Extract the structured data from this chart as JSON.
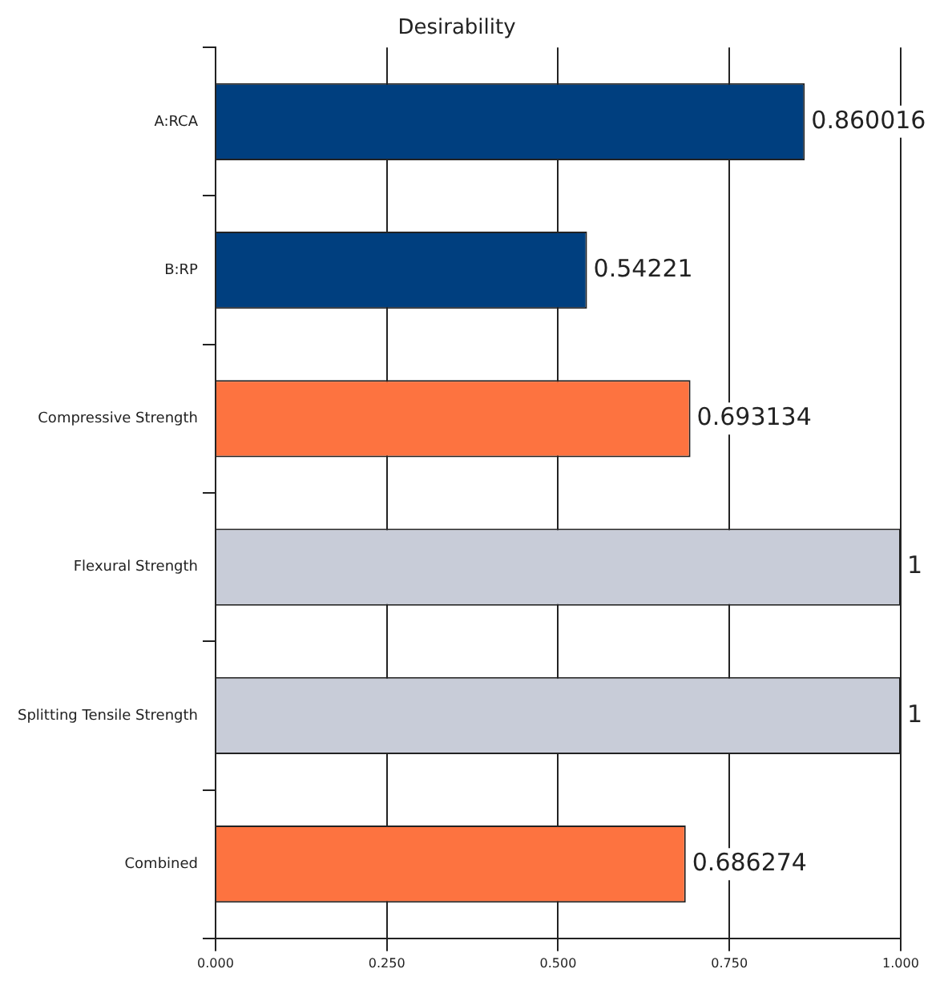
{
  "chart_data": {
    "type": "bar",
    "orientation": "horizontal",
    "title": "Desirability",
    "categories": [
      "A:RCA",
      "B:RP",
      "Compressive Strength",
      "Flexural Strength",
      "Splitting Tensile Strength",
      "Combined"
    ],
    "values": [
      0.860016,
      0.54221,
      0.693134,
      1,
      1,
      0.686274
    ],
    "colors": [
      "#003f7f",
      "#003f7f",
      "#fd7340",
      "#c8ccd8",
      "#c8ccd8",
      "#fd7340"
    ],
    "xlim": [
      0,
      1
    ],
    "xticks": [
      {
        "value": 0,
        "label": "0.000"
      },
      {
        "value": 0.25,
        "label": "0.250"
      },
      {
        "value": 0.5,
        "label": "0.500"
      },
      {
        "value": 0.75,
        "label": "0.750"
      },
      {
        "value": 1,
        "label": "1.000"
      }
    ],
    "grid": "x",
    "data_labels": true,
    "legend": false
  }
}
